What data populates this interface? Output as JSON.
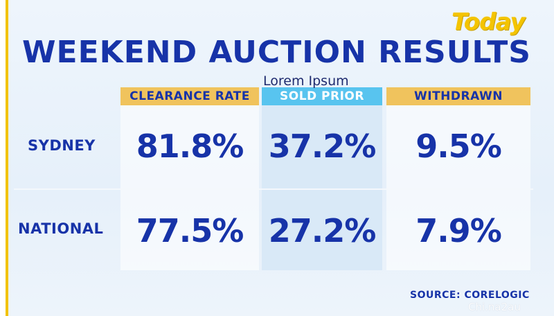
{
  "logo": "Today",
  "headline": "WEEKEND AUCTION RESULTS",
  "overlay_text": "Lorem Ipsum",
  "columns": {
    "clearance_rate": "CLEARANCE RATE",
    "sold_prior": "SOLD PRIOR",
    "withdrawn": "WITHDRAWN"
  },
  "rows": [
    {
      "label": "SYDNEY",
      "clearance_rate": "81.8%",
      "sold_prior": "37.2%",
      "withdrawn": "9.5%"
    },
    {
      "label": "NATIONAL",
      "clearance_rate": "77.5%",
      "sold_prior": "27.2%",
      "withdrawn": "7.9%"
    }
  ],
  "source": "SOURCE: CORELOGIC",
  "watermark": "Chi.na2au",
  "colors": {
    "primary_blue": "#1733a8",
    "header_gold": "#f0c35d",
    "header_cyan": "#58c4ef",
    "logo_yellow": "#f4c400"
  }
}
